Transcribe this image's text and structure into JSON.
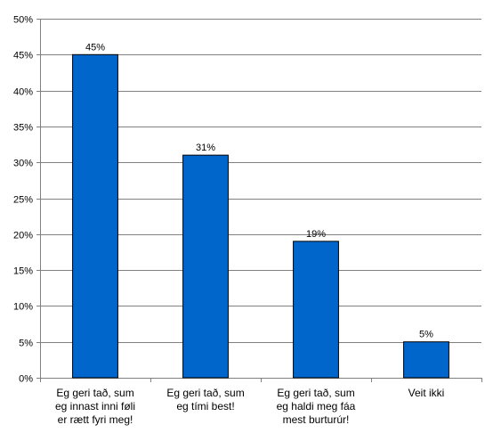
{
  "chart_data": {
    "type": "bar",
    "title": "",
    "xlabel": "",
    "ylabel": "",
    "categories": [
      [
        "Eg geri tað, sum",
        "eg innast inni føli",
        "er rætt fyri meg!"
      ],
      [
        "Eg geri tað, sum",
        "eg tími best!"
      ],
      [
        "Eg geri tað, sum",
        "eg haldi meg fáa",
        "mest burturúr!"
      ],
      [
        "Veit ikki"
      ]
    ],
    "values": [
      45,
      31,
      19,
      5
    ],
    "data_labels": [
      "45%",
      "31%",
      "19%",
      "5%"
    ],
    "ylim": [
      0,
      50
    ],
    "yticks": [
      0,
      5,
      10,
      15,
      20,
      25,
      30,
      35,
      40,
      45,
      50
    ],
    "ytick_labels": [
      "0%",
      "5%",
      "10%",
      "15%",
      "20%",
      "25%",
      "30%",
      "35%",
      "40%",
      "45%",
      "50%"
    ],
    "grid": true,
    "legend": "none",
    "bar_color": "#0066CC",
    "bar_edge_color": "#000000",
    "gridline_color": "#808080"
  }
}
